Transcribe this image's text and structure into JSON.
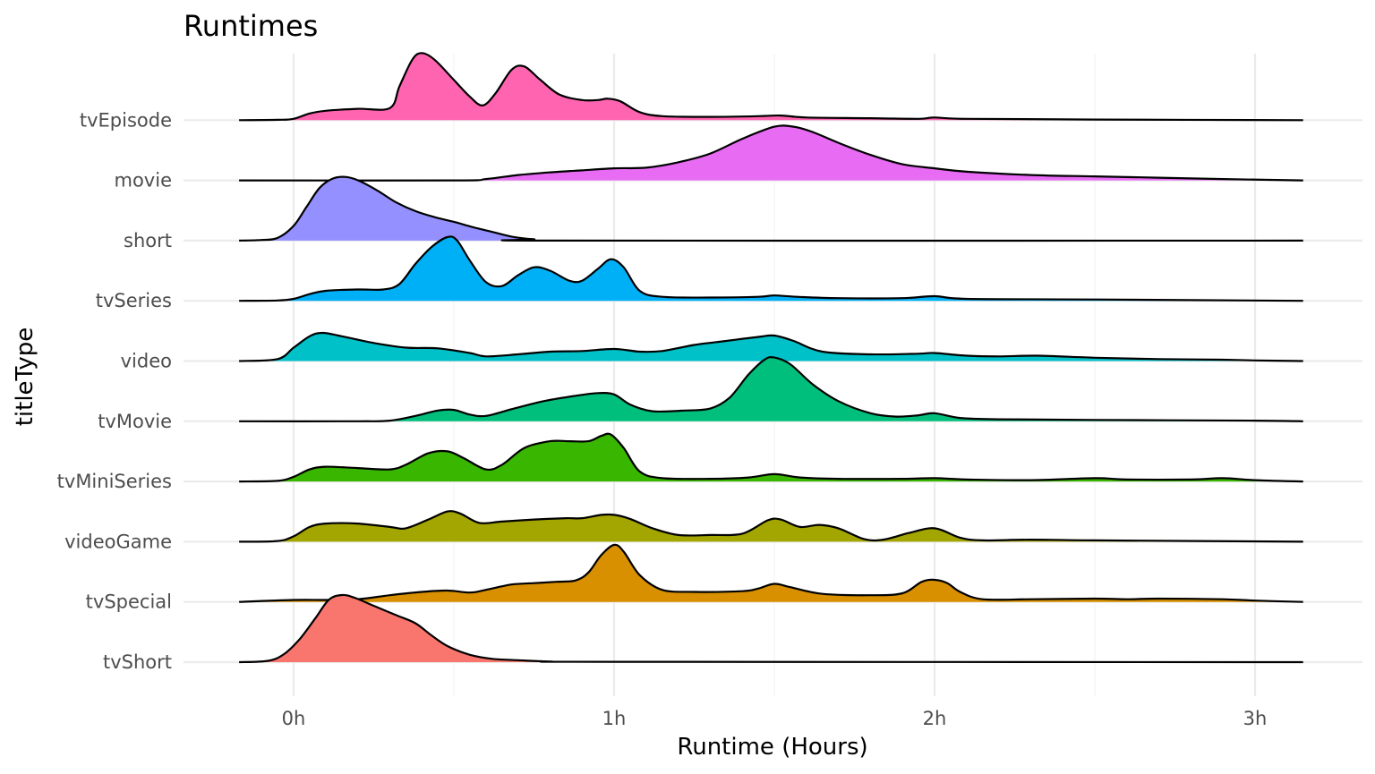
{
  "chart_data": {
    "type": "area",
    "subtype": "ridgeline",
    "title": "Runtimes",
    "xlabel": "Runtime (Hours)",
    "ylabel": "titleType",
    "xlim": [
      -0.17,
      3.15
    ],
    "x_ticks": [
      0,
      1,
      2,
      3
    ],
    "x_tick_labels": [
      "0h",
      "1h",
      "2h",
      "3h"
    ],
    "grid": true,
    "legend": "none",
    "series": [
      {
        "name": "tvEpisode",
        "color": "#FF64B0",
        "points": [
          [
            -0.17,
            0
          ],
          [
            -0.05,
            0.005
          ],
          [
            0,
            0.02
          ],
          [
            0.05,
            0.1
          ],
          [
            0.1,
            0.14
          ],
          [
            0.2,
            0.17
          ],
          [
            0.3,
            0.18
          ],
          [
            0.33,
            0.5
          ],
          [
            0.37,
            0.9
          ],
          [
            0.4,
            1.0
          ],
          [
            0.44,
            0.9
          ],
          [
            0.5,
            0.6
          ],
          [
            0.55,
            0.35
          ],
          [
            0.59,
            0.22
          ],
          [
            0.63,
            0.4
          ],
          [
            0.68,
            0.75
          ],
          [
            0.72,
            0.8
          ],
          [
            0.77,
            0.6
          ],
          [
            0.83,
            0.38
          ],
          [
            0.9,
            0.3
          ],
          [
            0.95,
            0.3
          ],
          [
            0.98,
            0.32
          ],
          [
            1.02,
            0.28
          ],
          [
            1.08,
            0.12
          ],
          [
            1.15,
            0.06
          ],
          [
            1.3,
            0.05
          ],
          [
            1.45,
            0.06
          ],
          [
            1.52,
            0.07
          ],
          [
            1.6,
            0.04
          ],
          [
            1.8,
            0.03
          ],
          [
            1.95,
            0.02
          ],
          [
            2.0,
            0.04
          ],
          [
            2.1,
            0.02
          ],
          [
            2.5,
            0.01
          ],
          [
            3.15,
            0
          ]
        ]
      },
      {
        "name": "movie",
        "color": "#E76BF3",
        "points": [
          [
            -0.17,
            0
          ],
          [
            0.5,
            0
          ],
          [
            0.6,
            0.02
          ],
          [
            0.7,
            0.08
          ],
          [
            0.8,
            0.12
          ],
          [
            0.9,
            0.15
          ],
          [
            1.0,
            0.18
          ],
          [
            1.1,
            0.19
          ],
          [
            1.2,
            0.27
          ],
          [
            1.3,
            0.4
          ],
          [
            1.4,
            0.62
          ],
          [
            1.5,
            0.8
          ],
          [
            1.56,
            0.8
          ],
          [
            1.62,
            0.72
          ],
          [
            1.7,
            0.56
          ],
          [
            1.8,
            0.38
          ],
          [
            1.9,
            0.24
          ],
          [
            2.0,
            0.18
          ],
          [
            2.1,
            0.13
          ],
          [
            2.3,
            0.08
          ],
          [
            2.5,
            0.06
          ],
          [
            2.7,
            0.04
          ],
          [
            2.9,
            0.02
          ],
          [
            3.15,
            0
          ]
        ]
      },
      {
        "name": "short",
        "color": "#9590FF",
        "points": [
          [
            -0.17,
            0
          ],
          [
            -0.1,
            0.01
          ],
          [
            -0.05,
            0.04
          ],
          [
            0,
            0.22
          ],
          [
            0.04,
            0.5
          ],
          [
            0.08,
            0.78
          ],
          [
            0.12,
            0.92
          ],
          [
            0.16,
            0.95
          ],
          [
            0.2,
            0.9
          ],
          [
            0.26,
            0.75
          ],
          [
            0.32,
            0.57
          ],
          [
            0.38,
            0.44
          ],
          [
            0.44,
            0.35
          ],
          [
            0.5,
            0.28
          ],
          [
            0.56,
            0.2
          ],
          [
            0.62,
            0.13
          ],
          [
            0.68,
            0.06
          ],
          [
            0.75,
            0.02
          ],
          [
            0.85,
            0
          ],
          [
            3.15,
            0
          ]
        ]
      },
      {
        "name": "tvSeries",
        "color": "#00B0F6",
        "points": [
          [
            -0.17,
            0
          ],
          [
            -0.05,
            0.005
          ],
          [
            0,
            0.03
          ],
          [
            0.05,
            0.1
          ],
          [
            0.1,
            0.15
          ],
          [
            0.2,
            0.17
          ],
          [
            0.28,
            0.17
          ],
          [
            0.33,
            0.25
          ],
          [
            0.38,
            0.55
          ],
          [
            0.43,
            0.8
          ],
          [
            0.48,
            0.95
          ],
          [
            0.51,
            0.9
          ],
          [
            0.55,
            0.6
          ],
          [
            0.6,
            0.28
          ],
          [
            0.65,
            0.22
          ],
          [
            0.7,
            0.38
          ],
          [
            0.75,
            0.5
          ],
          [
            0.8,
            0.45
          ],
          [
            0.86,
            0.3
          ],
          [
            0.9,
            0.3
          ],
          [
            0.95,
            0.48
          ],
          [
            0.99,
            0.62
          ],
          [
            1.03,
            0.5
          ],
          [
            1.08,
            0.15
          ],
          [
            1.15,
            0.06
          ],
          [
            1.3,
            0.05
          ],
          [
            1.45,
            0.06
          ],
          [
            1.5,
            0.08
          ],
          [
            1.57,
            0.06
          ],
          [
            1.7,
            0.04
          ],
          [
            1.9,
            0.04
          ],
          [
            2.0,
            0.07
          ],
          [
            2.1,
            0.03
          ],
          [
            2.5,
            0.02
          ],
          [
            3.15,
            0
          ]
        ]
      },
      {
        "name": "video",
        "color": "#00C0C8",
        "points": [
          [
            -0.17,
            0
          ],
          [
            -0.05,
            0.03
          ],
          [
            0,
            0.2
          ],
          [
            0.05,
            0.37
          ],
          [
            0.09,
            0.42
          ],
          [
            0.15,
            0.37
          ],
          [
            0.25,
            0.27
          ],
          [
            0.35,
            0.2
          ],
          [
            0.45,
            0.19
          ],
          [
            0.55,
            0.12
          ],
          [
            0.6,
            0.07
          ],
          [
            0.7,
            0.1
          ],
          [
            0.8,
            0.14
          ],
          [
            0.9,
            0.15
          ],
          [
            1.0,
            0.18
          ],
          [
            1.08,
            0.14
          ],
          [
            1.15,
            0.15
          ],
          [
            1.25,
            0.24
          ],
          [
            1.35,
            0.3
          ],
          [
            1.45,
            0.36
          ],
          [
            1.5,
            0.38
          ],
          [
            1.56,
            0.3
          ],
          [
            1.65,
            0.14
          ],
          [
            1.8,
            0.1
          ],
          [
            1.95,
            0.11
          ],
          [
            2.0,
            0.12
          ],
          [
            2.1,
            0.08
          ],
          [
            2.2,
            0.07
          ],
          [
            2.32,
            0.08
          ],
          [
            2.5,
            0.05
          ],
          [
            2.7,
            0.03
          ],
          [
            2.9,
            0.02
          ],
          [
            3.0,
            0.01
          ],
          [
            3.15,
            0
          ]
        ]
      },
      {
        "name": "tvMovie",
        "color": "#00BF7D",
        "points": [
          [
            -0.17,
            0
          ],
          [
            0.2,
            0
          ],
          [
            0.3,
            0.01
          ],
          [
            0.38,
            0.08
          ],
          [
            0.45,
            0.16
          ],
          [
            0.5,
            0.17
          ],
          [
            0.55,
            0.1
          ],
          [
            0.6,
            0.08
          ],
          [
            0.68,
            0.18
          ],
          [
            0.78,
            0.3
          ],
          [
            0.88,
            0.38
          ],
          [
            0.95,
            0.42
          ],
          [
            1.0,
            0.4
          ],
          [
            1.05,
            0.25
          ],
          [
            1.12,
            0.15
          ],
          [
            1.22,
            0.16
          ],
          [
            1.3,
            0.19
          ],
          [
            1.36,
            0.35
          ],
          [
            1.42,
            0.7
          ],
          [
            1.47,
            0.92
          ],
          [
            1.5,
            0.95
          ],
          [
            1.55,
            0.85
          ],
          [
            1.62,
            0.55
          ],
          [
            1.7,
            0.3
          ],
          [
            1.8,
            0.12
          ],
          [
            1.88,
            0.07
          ],
          [
            1.95,
            0.09
          ],
          [
            2.0,
            0.12
          ],
          [
            2.08,
            0.05
          ],
          [
            2.2,
            0.03
          ],
          [
            2.5,
            0.02
          ],
          [
            3.0,
            0.01
          ],
          [
            3.15,
            0
          ]
        ]
      },
      {
        "name": "tvMiniSeries",
        "color": "#39B600",
        "points": [
          [
            -0.17,
            0
          ],
          [
            -0.05,
            0.01
          ],
          [
            0,
            0.07
          ],
          [
            0.05,
            0.18
          ],
          [
            0.1,
            0.22
          ],
          [
            0.2,
            0.2
          ],
          [
            0.3,
            0.18
          ],
          [
            0.35,
            0.25
          ],
          [
            0.42,
            0.42
          ],
          [
            0.48,
            0.45
          ],
          [
            0.53,
            0.35
          ],
          [
            0.6,
            0.18
          ],
          [
            0.65,
            0.25
          ],
          [
            0.72,
            0.5
          ],
          [
            0.8,
            0.6
          ],
          [
            0.86,
            0.6
          ],
          [
            0.92,
            0.6
          ],
          [
            0.96,
            0.68
          ],
          [
            0.99,
            0.7
          ],
          [
            1.03,
            0.5
          ],
          [
            1.08,
            0.15
          ],
          [
            1.15,
            0.05
          ],
          [
            1.3,
            0.04
          ],
          [
            1.42,
            0.06
          ],
          [
            1.5,
            0.11
          ],
          [
            1.58,
            0.06
          ],
          [
            1.7,
            0.04
          ],
          [
            1.9,
            0.04
          ],
          [
            2.0,
            0.05
          ],
          [
            2.1,
            0.03
          ],
          [
            2.3,
            0.02
          ],
          [
            2.5,
            0.05
          ],
          [
            2.6,
            0.03
          ],
          [
            2.8,
            0.03
          ],
          [
            2.9,
            0.05
          ],
          [
            3.0,
            0.02
          ],
          [
            3.15,
            0
          ]
        ]
      },
      {
        "name": "videoGame",
        "color": "#A3A500",
        "points": [
          [
            -0.17,
            0
          ],
          [
            -0.05,
            0.01
          ],
          [
            0,
            0.08
          ],
          [
            0.05,
            0.22
          ],
          [
            0.1,
            0.27
          ],
          [
            0.2,
            0.27
          ],
          [
            0.3,
            0.22
          ],
          [
            0.35,
            0.2
          ],
          [
            0.42,
            0.33
          ],
          [
            0.48,
            0.45
          ],
          [
            0.52,
            0.42
          ],
          [
            0.58,
            0.28
          ],
          [
            0.65,
            0.3
          ],
          [
            0.75,
            0.33
          ],
          [
            0.85,
            0.35
          ],
          [
            0.9,
            0.35
          ],
          [
            0.96,
            0.4
          ],
          [
            1.0,
            0.4
          ],
          [
            1.05,
            0.34
          ],
          [
            1.12,
            0.2
          ],
          [
            1.2,
            0.1
          ],
          [
            1.3,
            0.1
          ],
          [
            1.4,
            0.12
          ],
          [
            1.48,
            0.32
          ],
          [
            1.52,
            0.33
          ],
          [
            1.58,
            0.22
          ],
          [
            1.64,
            0.25
          ],
          [
            1.7,
            0.2
          ],
          [
            1.78,
            0.04
          ],
          [
            1.84,
            0.03
          ],
          [
            1.92,
            0.13
          ],
          [
            2.0,
            0.2
          ],
          [
            2.08,
            0.06
          ],
          [
            2.15,
            0.02
          ],
          [
            2.3,
            0.03
          ],
          [
            2.5,
            0.02
          ],
          [
            3.15,
            0
          ]
        ]
      },
      {
        "name": "tvSpecial",
        "color": "#D89000",
        "points": [
          [
            -0.17,
            0
          ],
          [
            0,
            0.03
          ],
          [
            0.1,
            0.03
          ],
          [
            0.2,
            0.04
          ],
          [
            0.3,
            0.1
          ],
          [
            0.4,
            0.15
          ],
          [
            0.48,
            0.17
          ],
          [
            0.55,
            0.14
          ],
          [
            0.6,
            0.18
          ],
          [
            0.68,
            0.26
          ],
          [
            0.75,
            0.28
          ],
          [
            0.82,
            0.3
          ],
          [
            0.88,
            0.32
          ],
          [
            0.92,
            0.44
          ],
          [
            0.96,
            0.7
          ],
          [
            1.0,
            0.85
          ],
          [
            1.03,
            0.75
          ],
          [
            1.08,
            0.4
          ],
          [
            1.15,
            0.18
          ],
          [
            1.25,
            0.15
          ],
          [
            1.4,
            0.16
          ],
          [
            1.45,
            0.2
          ],
          [
            1.5,
            0.27
          ],
          [
            1.55,
            0.22
          ],
          [
            1.65,
            0.12
          ],
          [
            1.8,
            0.1
          ],
          [
            1.9,
            0.13
          ],
          [
            1.96,
            0.3
          ],
          [
            2.0,
            0.33
          ],
          [
            2.04,
            0.28
          ],
          [
            2.08,
            0.15
          ],
          [
            2.15,
            0.04
          ],
          [
            2.3,
            0.04
          ],
          [
            2.5,
            0.05
          ],
          [
            2.6,
            0.04
          ],
          [
            2.7,
            0.05
          ],
          [
            2.9,
            0.04
          ],
          [
            3.0,
            0.02
          ],
          [
            3.15,
            0
          ]
        ]
      },
      {
        "name": "tvShort",
        "color": "#F8766D",
        "points": [
          [
            -0.17,
            0
          ],
          [
            -0.08,
            0.02
          ],
          [
            -0.03,
            0.12
          ],
          [
            0.02,
            0.35
          ],
          [
            0.07,
            0.67
          ],
          [
            0.11,
            0.93
          ],
          [
            0.15,
            1.0
          ],
          [
            0.19,
            0.96
          ],
          [
            0.25,
            0.84
          ],
          [
            0.32,
            0.7
          ],
          [
            0.38,
            0.58
          ],
          [
            0.43,
            0.4
          ],
          [
            0.48,
            0.24
          ],
          [
            0.55,
            0.11
          ],
          [
            0.62,
            0.05
          ],
          [
            0.7,
            0.03
          ],
          [
            0.8,
            0.01
          ],
          [
            1.0,
            0.005
          ],
          [
            3.15,
            0
          ]
        ]
      }
    ]
  }
}
